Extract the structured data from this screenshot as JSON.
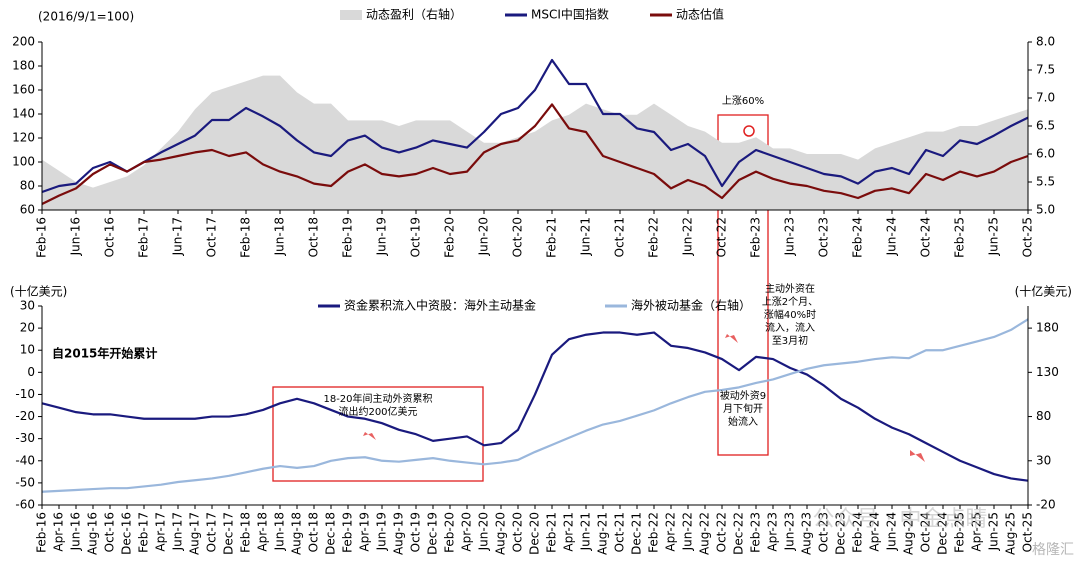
{
  "chart_data": [
    {
      "type": "line",
      "annotations": [
        "(2016/9/1=100)",
        "上涨60%"
      ],
      "categories": [
        "Feb-16",
        null,
        "Jun-16",
        null,
        "Oct-16",
        null,
        "Feb-17",
        null,
        "Jun-17",
        null,
        "Oct-17",
        null,
        "Feb-18",
        null,
        "Jun-18",
        null,
        "Oct-18",
        null,
        "Feb-19",
        null,
        "Jun-19",
        null,
        "Oct-19",
        null,
        "Feb-20",
        null,
        "Jun-20",
        null,
        "Oct-20",
        null,
        "Feb-21",
        null,
        "Jun-21",
        null,
        "Oct-21",
        null,
        "Feb-22",
        null,
        "Jun-22",
        null,
        "Oct-22",
        null,
        "Feb-23",
        null,
        "Jun-23",
        null,
        "Oct-23",
        null,
        "Feb-24",
        null,
        "Jun-24",
        null,
        "Oct-24",
        null,
        "Feb-25",
        null,
        "Jun-25",
        null,
        "Oct-25"
      ],
      "series": [
        {
          "name": "动态盈利（右轴）",
          "color": "#d9d9d9",
          "axis": "y2",
          "area": true,
          "values": [
            5.9,
            5.7,
            5.5,
            5.4,
            5.5,
            5.6,
            5.8,
            6.1,
            6.4,
            6.8,
            7.1,
            7.2,
            7.3,
            7.4,
            7.4,
            7.1,
            6.9,
            6.9,
            6.6,
            6.6,
            6.6,
            6.5,
            6.6,
            6.6,
            6.6,
            6.4,
            6.2,
            6.2,
            6.3,
            6.4,
            6.6,
            6.7,
            6.9,
            6.8,
            6.7,
            6.7,
            6.9,
            6.7,
            6.5,
            6.4,
            6.2,
            6.2,
            6.3,
            6.1,
            6.1,
            6.0,
            6.0,
            6.0,
            5.9,
            6.1,
            6.2,
            6.3,
            6.4,
            6.4,
            6.5,
            6.5,
            6.6,
            6.7,
            6.8
          ]
        },
        {
          "name": "MSCI中国指数",
          "color": "#1a1a7e",
          "values": [
            75,
            80,
            82,
            95,
            100,
            92,
            100,
            108,
            115,
            122,
            135,
            135,
            145,
            138,
            130,
            118,
            108,
            105,
            118,
            122,
            112,
            108,
            112,
            118,
            115,
            112,
            125,
            140,
            145,
            160,
            185,
            165,
            165,
            140,
            140,
            128,
            125,
            110,
            115,
            105,
            80,
            100,
            110,
            105,
            100,
            95,
            90,
            88,
            82,
            92,
            95,
            90,
            110,
            105,
            118,
            115,
            122,
            130,
            137
          ]
        },
        {
          "name": "动态估值",
          "color": "#7a0c0c",
          "values": [
            65,
            72,
            78,
            90,
            98,
            92,
            100,
            102,
            105,
            108,
            110,
            105,
            108,
            98,
            92,
            88,
            82,
            80,
            92,
            98,
            90,
            88,
            90,
            95,
            90,
            92,
            108,
            115,
            118,
            130,
            148,
            128,
            125,
            105,
            100,
            95,
            90,
            78,
            85,
            80,
            70,
            85,
            92,
            86,
            82,
            80,
            76,
            74,
            70,
            76,
            78,
            74,
            90,
            85,
            92,
            88,
            92,
            100,
            105
          ]
        }
      ],
      "ylim": [
        60,
        200
      ],
      "yticks": [
        60,
        80,
        100,
        120,
        140,
        160,
        180,
        200
      ],
      "y2lim": [
        5,
        8
      ],
      "y2ticks": [
        {
          "value": 5,
          "label": "5.0"
        },
        5.5,
        {
          "value": 6,
          "label": "6.0"
        },
        6.5,
        {
          "value": 7,
          "label": "7.0"
        },
        7.5,
        {
          "value": 8,
          "label": "8.0"
        }
      ]
    },
    {
      "type": "line",
      "annotations": [
        "(十亿美元)",
        "(十亿美元)",
        "自2015年开始累计"
      ],
      "notes": [
        [
          "18-20年间主动外资累积",
          "流出约200亿美元"
        ],
        [
          "主动外资在",
          "上涨2个月、",
          "涨幅40%时",
          "流入，流入",
          "至3月初"
        ],
        [
          "被动外资9",
          "月下旬开",
          "始流入"
        ]
      ],
      "watermark": [
        "公众号 · 中金点睛",
        "格隆汇"
      ],
      "categories": [
        "Feb-16",
        "Apr-16",
        "Jun-16",
        "Aug-16",
        "Oct-16",
        "Dec-16",
        "Feb-17",
        "Apr-17",
        "Jun-17",
        "Aug-17",
        "Oct-17",
        "Dec-17",
        "Feb-18",
        "Apr-18",
        "Jun-18",
        "Aug-18",
        "Oct-18",
        "Dec-18",
        "Feb-19",
        "Apr-19",
        "Jun-19",
        "Aug-19",
        "Oct-19",
        "Dec-19",
        "Feb-20",
        "Apr-20",
        "Jun-20",
        "Aug-20",
        "Oct-20",
        "Dec-20",
        "Feb-21",
        "Apr-21",
        "Jun-21",
        "Aug-21",
        "Oct-21",
        "Dec-21",
        "Feb-22",
        "Apr-22",
        "Jun-22",
        "Aug-22",
        "Oct-22",
        "Dec-22",
        "Feb-23",
        "Apr-23",
        "Jun-23",
        "Aug-23",
        "Oct-23",
        "Dec-23",
        "Feb-24",
        "Apr-24",
        "Jun-24",
        "Aug-24",
        "Oct-24",
        "Dec-24",
        "Feb-25",
        "Apr-25",
        "Jun-25",
        "Aug-25",
        "Oct-25"
      ],
      "series": [
        {
          "name": "资金累积流入中资股：海外主动基金",
          "color": "#1a1a7e",
          "values": [
            -14,
            -16,
            -18,
            -19,
            -19,
            -20,
            -21,
            -21,
            -21,
            -21,
            -20,
            -20,
            -19,
            -17,
            -14,
            -12,
            -14,
            -17,
            -20,
            -21,
            -23,
            -26,
            -28,
            -31,
            -30,
            -29,
            -33,
            -32,
            -26,
            -10,
            8,
            15,
            17,
            18,
            18,
            17,
            18,
            12,
            11,
            9,
            6,
            1,
            7,
            6,
            2,
            -1,
            -6,
            -12,
            -16,
            -21,
            -25,
            -28,
            -32,
            -36,
            -40,
            -43,
            -46,
            -48,
            -49
          ]
        },
        {
          "name": "海外被动基金（右轴）",
          "color": "#9ab7dc",
          "axis": "y2",
          "values": [
            -5,
            -4,
            -3,
            -2,
            -1,
            -1,
            1,
            3,
            6,
            8,
            10,
            13,
            17,
            21,
            24,
            22,
            24,
            30,
            33,
            34,
            30,
            29,
            31,
            33,
            30,
            28,
            26,
            28,
            31,
            40,
            48,
            56,
            64,
            71,
            75,
            81,
            87,
            95,
            102,
            108,
            110,
            113,
            118,
            122,
            128,
            134,
            138,
            140,
            142,
            145,
            147,
            146,
            155,
            155,
            160,
            165,
            170,
            178,
            190
          ]
        }
      ],
      "ylim": [
        -60,
        30
      ],
      "yticks": [
        -60,
        -50,
        -40,
        -30,
        -20,
        -10,
        0,
        10,
        20,
        30
      ],
      "y2lim": [
        -20,
        205
      ],
      "y2ticks": [
        -20,
        30,
        80,
        130,
        180
      ]
    }
  ]
}
